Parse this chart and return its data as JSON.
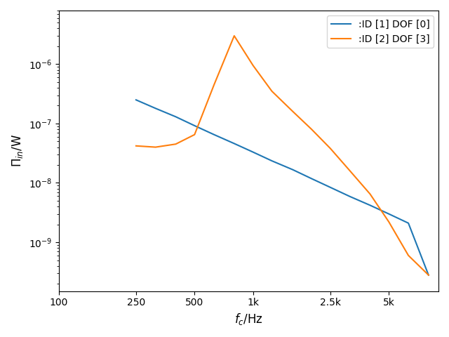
{
  "title": "",
  "xlabel": "$f_c$/Hz",
  "ylabel": "$\\Pi_{in}$/W",
  "legend": [
    ":ID [1] DOF [0]",
    ":ID [2] DOF [3]"
  ],
  "line_colors": [
    "#1f77b4",
    "#ff7f0e"
  ],
  "x_blue": [
    250,
    315,
    400,
    500,
    630,
    800,
    1000,
    1250,
    1600,
    2000,
    2500,
    3150,
    4000,
    5000,
    6300,
    8000
  ],
  "y_blue": [
    2.5e-07,
    1.8e-07,
    1.3e-07,
    9.2e-08,
    6.5e-08,
    4.6e-08,
    3.3e-08,
    2.35e-08,
    1.67e-08,
    1.18e-08,
    8.4e-09,
    5.9e-09,
    4.2e-09,
    3e-09,
    2.1e-09,
    2.8e-10
  ],
  "x_orange": [
    250,
    315,
    400,
    500,
    630,
    800,
    1000,
    1250,
    1600,
    2000,
    2500,
    3150,
    4000,
    5000,
    6300,
    8000
  ],
  "y_orange": [
    4.2e-08,
    4e-08,
    4.5e-08,
    6.5e-08,
    4.5e-07,
    3e-06,
    9.5e-07,
    3.5e-07,
    1.6e-07,
    8e-08,
    3.8e-08,
    1.6e-08,
    6.5e-09,
    2.2e-09,
    6e-10,
    2.8e-10
  ],
  "xlim": [
    100,
    9000
  ],
  "ylim": [
    1.5e-10,
    8e-06
  ],
  "xticks": [
    100,
    250,
    500,
    1000,
    2500,
    5000
  ],
  "xticklabels": [
    "100",
    "250",
    "500",
    "1k",
    "2.5k",
    "5k"
  ]
}
